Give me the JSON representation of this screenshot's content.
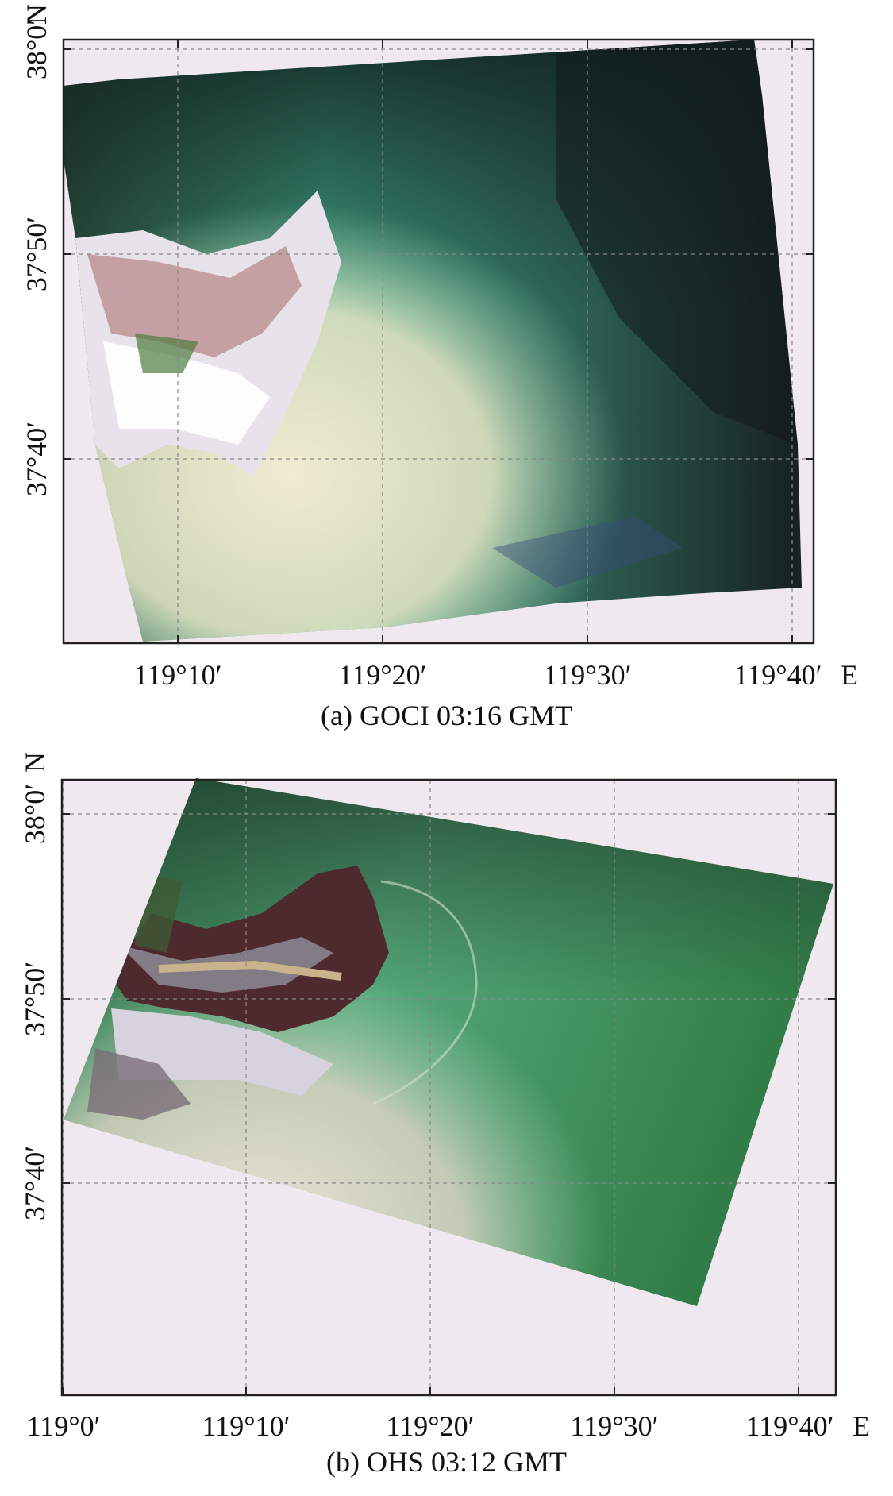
{
  "panels": [
    {
      "caption": "(a) GOCI 03:16 GMT",
      "x_ticks": [
        "119°10′",
        "119°20′",
        "119°30′",
        "119°40′"
      ],
      "x_unit": "E",
      "y_ticks": [
        "38°0′",
        "37°50′",
        "37°40′"
      ],
      "y_unit": "N"
    },
    {
      "caption": "(b) OHS 03:12 GMT",
      "x_ticks": [
        "119°0′",
        "119°10′",
        "119°20′",
        "119°30′",
        "119°40′"
      ],
      "x_unit": "E",
      "y_ticks": [
        "38°0′",
        "37°50′",
        "37°40′"
      ],
      "y_unit": "N"
    }
  ],
  "colors": {
    "background": "#efe8ee",
    "deep_water": "#1b2624",
    "turbid_water": "#3fa07e",
    "sediment": "#e9e3c8",
    "land_dark": "#5a2a2a",
    "tidal_flat": "#d9d3dc",
    "grid": "#888888",
    "frame": "#222222"
  }
}
